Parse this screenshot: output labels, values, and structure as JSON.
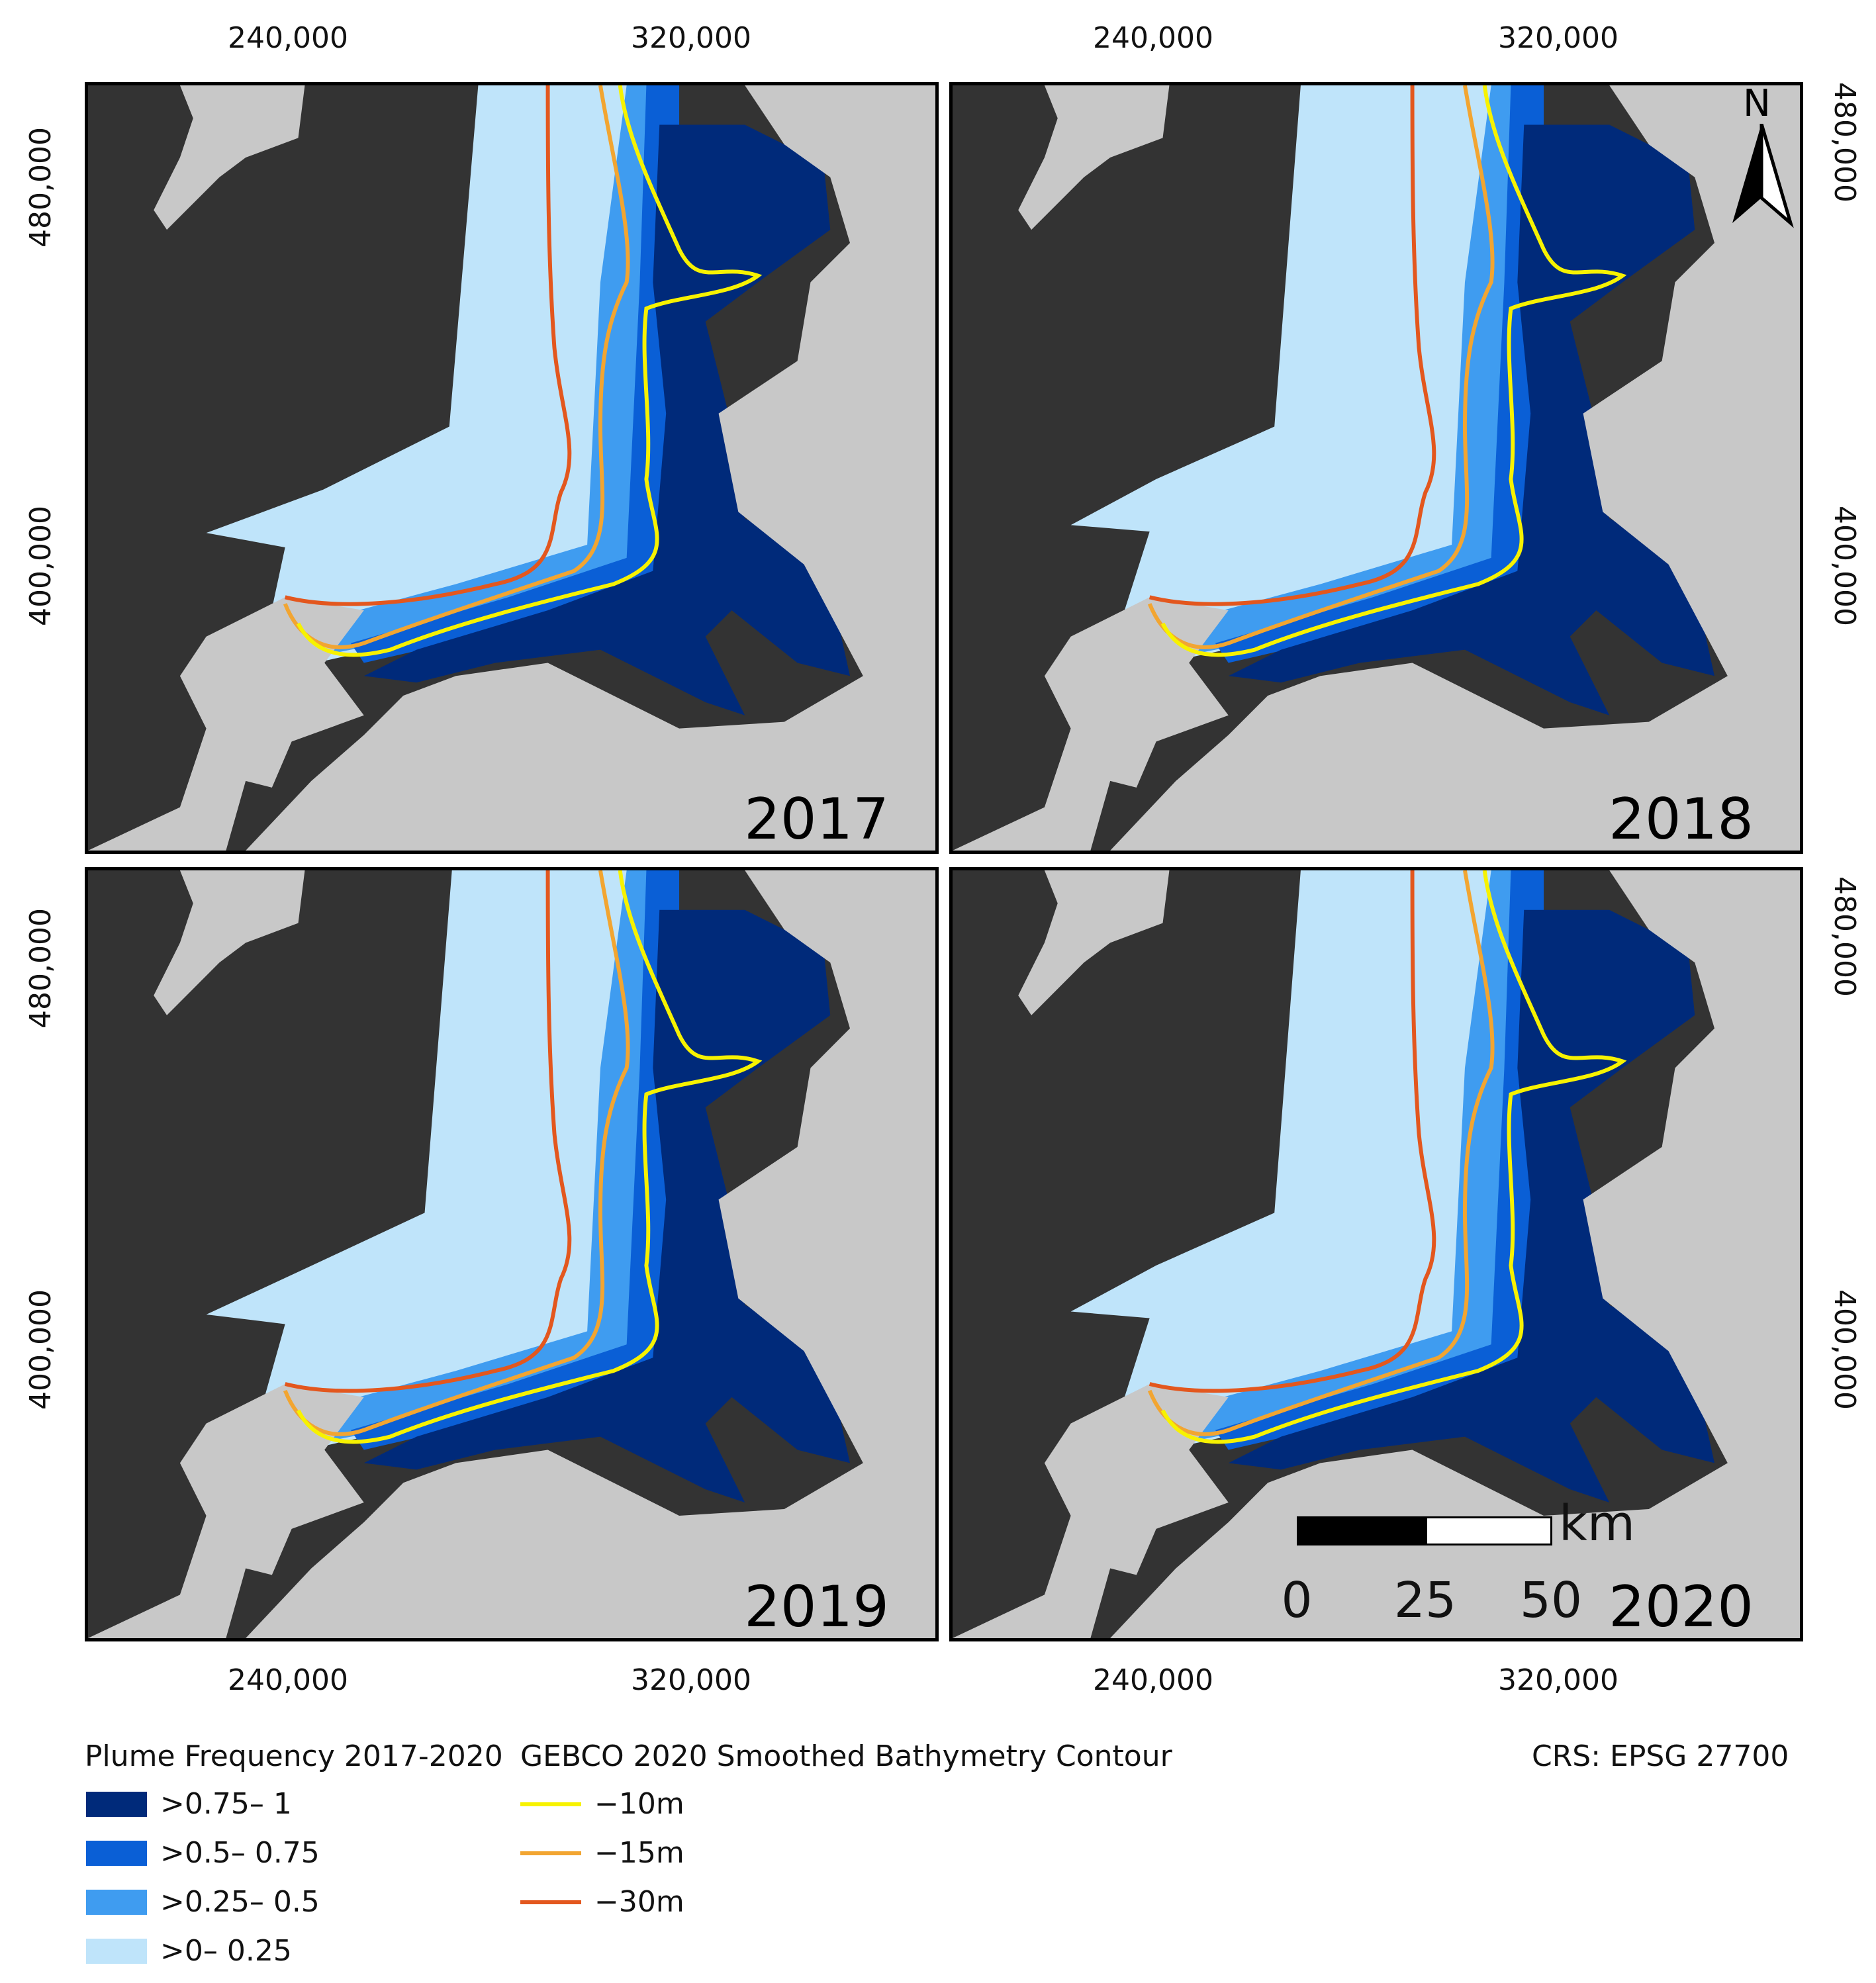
{
  "axes": {
    "x_ticks": [
      "240,000",
      "320,000"
    ],
    "y_ticks": [
      "480,000",
      "400,000"
    ]
  },
  "panels": [
    {
      "year": "2017"
    },
    {
      "year": "2018"
    },
    {
      "year": "2019"
    },
    {
      "year": "2020"
    }
  ],
  "north_arrow": {
    "label": "N",
    "icon": "north-arrow-icon"
  },
  "scale_bar": {
    "unit": "km",
    "labels": [
      "0",
      "25",
      "50"
    ]
  },
  "legend": {
    "plume": {
      "title": "Plume Frequency 2017-2020",
      "items": [
        {
          "label": ">0.75– 1",
          "color": "#002a7a"
        },
        {
          "label": ">0.5– 0.75",
          "color": "#0a5fd6"
        },
        {
          "label": ">0.25– 0.5",
          "color": "#3f9cf0"
        },
        {
          "label": ">0– 0.25",
          "color": "#bfe4fa"
        }
      ]
    },
    "bathymetry": {
      "title": "GEBCO 2020 Smoothed Bathymetry Contour",
      "items": [
        {
          "label": "−10m",
          "color": "#f7f200"
        },
        {
          "label": "−15m",
          "color": "#f2a531"
        },
        {
          "label": "−30m",
          "color": "#e3571e"
        }
      ]
    },
    "crs": "CRS: EPSG 27700"
  },
  "colors": {
    "sea": "#333333",
    "land": "#c8c8c8",
    "frame": "#000000"
  }
}
